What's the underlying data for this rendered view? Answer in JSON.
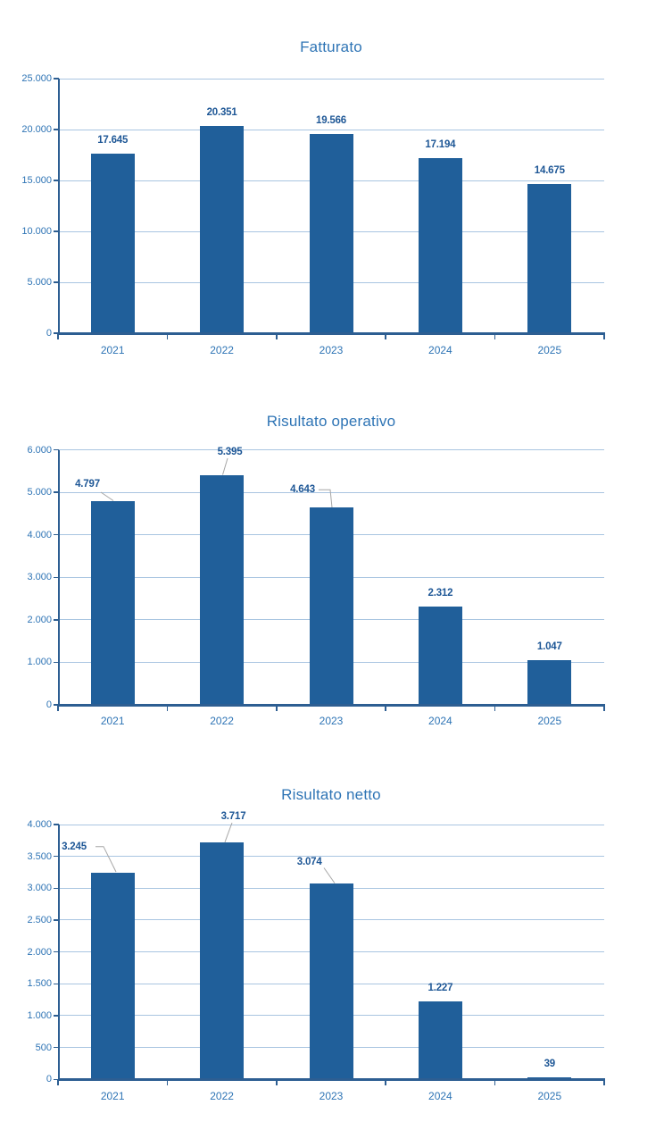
{
  "page": {
    "background": "#ffffff"
  },
  "colors": {
    "bar": "#205F9A",
    "gridline": "#A9C5E1",
    "axis": "#2D5E92",
    "title": "#2E74B5",
    "tick_label": "#2E74B5",
    "value_label": "#1E5796",
    "leader_line": "#A6A6A6"
  },
  "chart_data": [
    {
      "type": "bar",
      "title": "Fatturato",
      "categories": [
        "2021",
        "2022",
        "2023",
        "2024",
        "2025"
      ],
      "values": [
        17645,
        20351,
        19566,
        17194,
        14675
      ],
      "value_labels": [
        "17.645",
        "20.351",
        "19.566",
        "17.194",
        "14.675"
      ],
      "xlabel": "",
      "ylabel": "",
      "ylim": [
        0,
        25000
      ],
      "ytick_step": 5000,
      "ytick_labels": [
        "0",
        "5.000",
        "10.000",
        "15.000",
        "20.000",
        "25.000"
      ],
      "grid": true,
      "legend": false
    },
    {
      "type": "bar",
      "title": "Risultato operativo",
      "categories": [
        "2021",
        "2022",
        "2023",
        "2024",
        "2025"
      ],
      "values": [
        4797,
        5395,
        4643,
        2312,
        1047
      ],
      "value_labels": [
        "4.797",
        "5.395",
        "4.643",
        "2.312",
        "1.047"
      ],
      "xlabel": "",
      "ylabel": "",
      "ylim": [
        0,
        6000
      ],
      "ytick_step": 1000,
      "ytick_labels": [
        "0",
        "1.000",
        "2.000",
        "3.000",
        "4.000",
        "5.000",
        "6.000"
      ],
      "grid": true,
      "legend": false
    },
    {
      "type": "bar",
      "title": "Risultato netto",
      "categories": [
        "2021",
        "2022",
        "2023",
        "2024",
        "2025"
      ],
      "values": [
        3245,
        3717,
        3074,
        1227,
        39
      ],
      "value_labels": [
        "3.245",
        "3.717",
        "3.074",
        "1.227",
        "39"
      ],
      "xlabel": "",
      "ylabel": "",
      "ylim": [
        0,
        4000
      ],
      "ytick_step": 500,
      "ytick_labels": [
        "0",
        "500",
        "1.000",
        "1.500",
        "2.000",
        "2.500",
        "3.000",
        "3.500",
        "4.000"
      ],
      "grid": true,
      "legend": false
    }
  ]
}
